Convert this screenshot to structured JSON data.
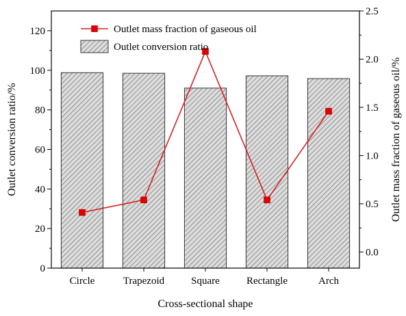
{
  "chart_data": {
    "type": "bar",
    "categories": [
      "Circle",
      "Trapezoid",
      "Square",
      "Rectangle",
      "Arch"
    ],
    "series": [
      {
        "name": "Outlet conversion ratio",
        "type": "bar",
        "axis": "left",
        "values": [
          98.8,
          98.5,
          91.0,
          97.2,
          95.8
        ]
      },
      {
        "name": "Outlet mass fraction of gaseous oil",
        "type": "line",
        "axis": "right",
        "values": [
          0.41,
          0.54,
          2.08,
          0.54,
          1.46
        ]
      }
    ],
    "xlabel": "Cross-sectional shape",
    "ylabel": "Outlet conversion ratio/%",
    "y2label": "Outlet mass fraction of gaseous oil/%",
    "ylim": [
      0,
      130
    ],
    "y2lim": [
      -0.167,
      2.5
    ],
    "yticks": [
      0,
      20,
      40,
      60,
      80,
      100,
      120
    ],
    "y2ticks": [
      "0.0",
      "0.5",
      "1.0",
      "1.5",
      "2.0",
      "2.5"
    ],
    "legend_position": "top-left",
    "colors": {
      "bar_fill": "#dcdcdc",
      "bar_hatch": "#555555",
      "line": "#d42020",
      "marker": "#e00000"
    }
  }
}
